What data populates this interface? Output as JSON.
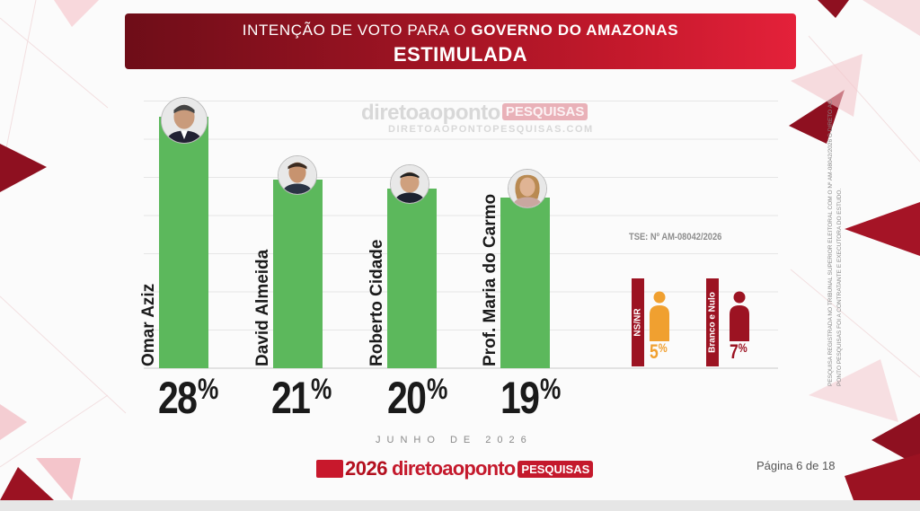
{
  "header": {
    "title_prefix": "INTENÇÃO DE VOTO PARA O",
    "title_bold": "GOVERNO DO AMAZONAS",
    "subtitle": "ESTIMULADA"
  },
  "watermark": {
    "brand": "diretoaoponto",
    "tag": "PESQUISAS",
    "site": "DIRETOAOPONTOPESQUISAS.COM"
  },
  "chart_data": {
    "type": "bar",
    "categories": [
      "Omar Aziz",
      "David Almeida",
      "Roberto Cidade",
      "Prof. Maria do Carmo"
    ],
    "values": [
      28,
      21,
      20,
      19
    ],
    "value_labels": [
      "28%",
      "21%",
      "20%",
      "19%"
    ],
    "ylim": [
      0,
      30
    ],
    "grid": true,
    "legend": "none",
    "colors": {
      "bars": "#5cb85c",
      "ns_nr": "#f0a030",
      "branco_nulo": "#9c1322"
    },
    "extra": [
      {
        "label": "NS/NR",
        "value": 5,
        "value_label": "5%"
      },
      {
        "label": "Branco e Nulo",
        "value": 7,
        "value_label": "7%"
      }
    ]
  },
  "candidates": [
    {
      "name": "Omar Aziz",
      "pct": "28"
    },
    {
      "name": "David Almeida",
      "pct": "21"
    },
    {
      "name": "Roberto Cidade",
      "pct": "20"
    },
    {
      "name": "Prof. Maria do Carmo",
      "pct": "19"
    }
  ],
  "percent_sign": "%",
  "tse_code": "TSE: Nº AM-08042/2026",
  "others": {
    "ns_nr": {
      "label": "NS/NR",
      "pct": "5"
    },
    "branco_nulo": {
      "label": "Branco e Nulo",
      "pct": "7"
    }
  },
  "footer": {
    "month": "JUNHO DE 2026",
    "year": "2026",
    "brand": "diretoaoponto",
    "tag": "PESQUISAS",
    "page": "Página 6 de 18"
  },
  "legal_text": "PESQUISA REGISTRADA NO TRIBUNAL SUPERIOR ELEITORAL COM O Nº AM-08042/2026 O DIRETO AO PONTO PESQUISAS FOI A CONTRATANTE E EXECUTORA DO ESTUDO."
}
